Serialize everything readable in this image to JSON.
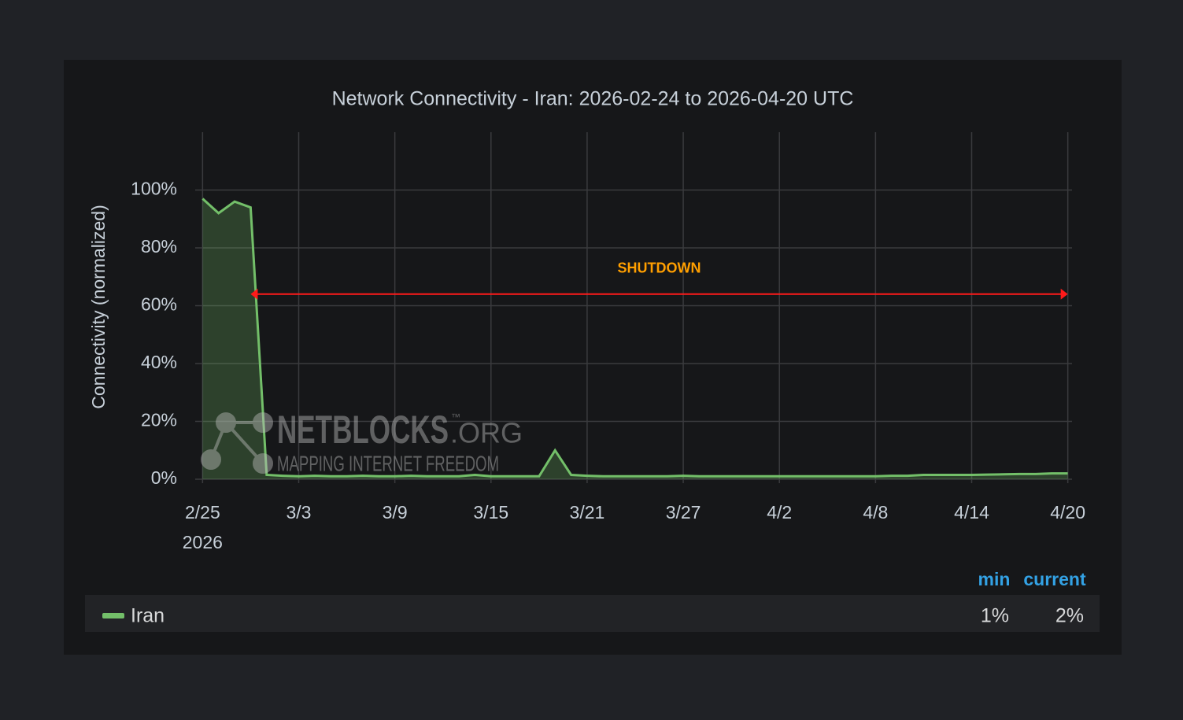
{
  "chart_data": {
    "type": "line",
    "title": "Network Connectivity - Iran: 2026-02-24 to 2026-04-20 UTC",
    "y_label": "Connectivity (normalized)",
    "x": [
      "2026-02-25",
      "2026-02-26",
      "2026-02-27",
      "2026-02-28",
      "2026-03-01",
      "2026-03-02",
      "2026-03-03",
      "2026-03-04",
      "2026-03-05",
      "2026-03-06",
      "2026-03-07",
      "2026-03-08",
      "2026-03-09",
      "2026-03-10",
      "2026-03-11",
      "2026-03-12",
      "2026-03-13",
      "2026-03-14",
      "2026-03-15",
      "2026-03-16",
      "2026-03-17",
      "2026-03-18",
      "2026-03-19",
      "2026-03-20",
      "2026-03-21",
      "2026-03-22",
      "2026-03-23",
      "2026-03-24",
      "2026-03-25",
      "2026-03-26",
      "2026-03-27",
      "2026-03-28",
      "2026-03-29",
      "2026-03-30",
      "2026-03-31",
      "2026-04-01",
      "2026-04-02",
      "2026-04-03",
      "2026-04-04",
      "2026-04-05",
      "2026-04-06",
      "2026-04-07",
      "2026-04-08",
      "2026-04-09",
      "2026-04-10",
      "2026-04-11",
      "2026-04-12",
      "2026-04-13",
      "2026-04-14",
      "2026-04-15",
      "2026-04-16",
      "2026-04-17",
      "2026-04-18",
      "2026-04-19",
      "2026-04-20"
    ],
    "series": [
      {
        "name": "Iran",
        "color": "#73bf69",
        "values": [
          97,
          92,
          96,
          94,
          1.5,
          1.2,
          1,
          1.2,
          1,
          1,
          1.2,
          1,
          1,
          1.2,
          1,
          1,
          1,
          1.5,
          1,
          1,
          1,
          1,
          10,
          1.5,
          1.2,
          1,
          1,
          1,
          1,
          1,
          1.2,
          1,
          1,
          1,
          1,
          1,
          1,
          1,
          1,
          1,
          1,
          1,
          1,
          1.2,
          1.2,
          1.5,
          1.5,
          1.5,
          1.5,
          1.6,
          1.7,
          1.8,
          1.8,
          2,
          2
        ],
        "legend_values": [
          "1%",
          "2%"
        ]
      }
    ],
    "legend_columns": [
      "min",
      "current"
    ],
    "xlim": [
      "2026-02-24",
      "2026-04-21"
    ],
    "xticks": [
      {
        "value": "2026-02-25",
        "label": "2/25"
      },
      {
        "value": "2026-03-03",
        "label": "3/3"
      },
      {
        "value": "2026-03-09",
        "label": "3/9"
      },
      {
        "value": "2026-03-15",
        "label": "3/15"
      },
      {
        "value": "2026-03-21",
        "label": "3/21"
      },
      {
        "value": "2026-03-27",
        "label": "3/27"
      },
      {
        "value": "2026-04-02",
        "label": "4/2"
      },
      {
        "value": "2026-04-08",
        "label": "4/8"
      },
      {
        "value": "2026-04-14",
        "label": "4/14"
      },
      {
        "value": "2026-04-20",
        "label": "4/20"
      }
    ],
    "x_year_label": "2026",
    "ylim": [
      0,
      120
    ],
    "yticks": [
      {
        "value": 0,
        "label": "0%"
      },
      {
        "value": 20,
        "label": "20%"
      },
      {
        "value": 40,
        "label": "40%"
      },
      {
        "value": 60,
        "label": "60%"
      },
      {
        "value": 80,
        "label": "80%"
      },
      {
        "value": 100,
        "label": "100%"
      }
    ],
    "grid": true,
    "annotation": {
      "text": "SHUTDOWN",
      "x0": "2026-02-28",
      "x1": "2026-04-20",
      "y": 64,
      "color": "#ff1a1a",
      "text_color": "#ff9f00"
    },
    "watermark": {
      "name": "NETBLOCKS",
      "suffix": ".ORG",
      "tm": "™",
      "tagline": "MAPPING INTERNET FREEDOM"
    }
  }
}
